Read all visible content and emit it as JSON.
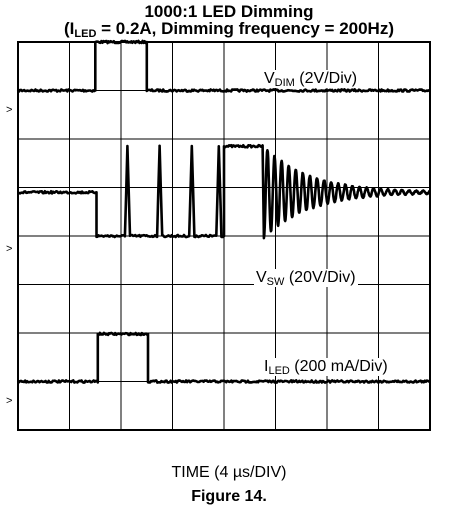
{
  "chart_data": {
    "type": "line",
    "title_line1": "1000:1 LED Dimming",
    "title_line2": {
      "open": "(I",
      "sub": "LED",
      "rest": " = 0.2A, Dimming frequency = 200Hz)"
    },
    "xlabel": "TIME (4 µs/DIV)",
    "figure_caption": "Figure 14.",
    "grid": true,
    "x_divisions": 8,
    "y_divisions": 8,
    "xlim": [
      0,
      32
    ],
    "x_unit": "µs",
    "ground_marker": ">",
    "series": [
      {
        "name": "V_DIM",
        "label_main": "V",
        "label_sub": "DIM",
        "label_scale": " (2V/Div)",
        "scale_per_div": 2,
        "unit": "V",
        "baseline_div": 7,
        "points": [
          [
            0,
            0
          ],
          [
            6.0,
            0
          ],
          [
            6.0,
            2.0
          ],
          [
            10.0,
            2.0
          ],
          [
            10.0,
            0
          ],
          [
            32,
            0
          ]
        ]
      },
      {
        "name": "V_SW",
        "label_main": "V",
        "label_sub": "SW",
        "label_scale": " (20V/Div)",
        "scale_per_div": 20,
        "unit": "V",
        "baseline_div": 4,
        "points": [
          [
            0,
            18
          ],
          [
            6.1,
            18
          ],
          [
            6.1,
            0
          ],
          [
            8.3,
            0
          ],
          [
            8.5,
            37
          ],
          [
            8.7,
            0
          ],
          [
            10.8,
            0
          ],
          [
            11.0,
            37
          ],
          [
            11.2,
            0
          ],
          [
            13.3,
            0
          ],
          [
            13.5,
            37
          ],
          [
            13.7,
            0
          ],
          [
            15.4,
            0
          ],
          [
            15.6,
            37
          ],
          [
            15.8,
            0
          ],
          [
            16.0,
            0
          ],
          [
            16.0,
            37
          ],
          [
            19.0,
            37
          ],
          [
            19.1,
            18
          ],
          [
            32,
            18
          ]
        ],
        "ringing": {
          "start_us": 19.1,
          "settled_value": 18,
          "initial_amplitude": 19,
          "decay_time_us": 3.5,
          "period_us": 0.55
        }
      },
      {
        "name": "I_LED",
        "label_main": "I",
        "label_sub": "LED",
        "label_scale": " (200 mA/Div)",
        "scale_per_div": 200,
        "unit": "mA",
        "baseline_div": 1,
        "points": [
          [
            0,
            0
          ],
          [
            6.2,
            0
          ],
          [
            6.2,
            196
          ],
          [
            10.1,
            196
          ],
          [
            10.1,
            0
          ],
          [
            32,
            0
          ]
        ]
      }
    ]
  }
}
